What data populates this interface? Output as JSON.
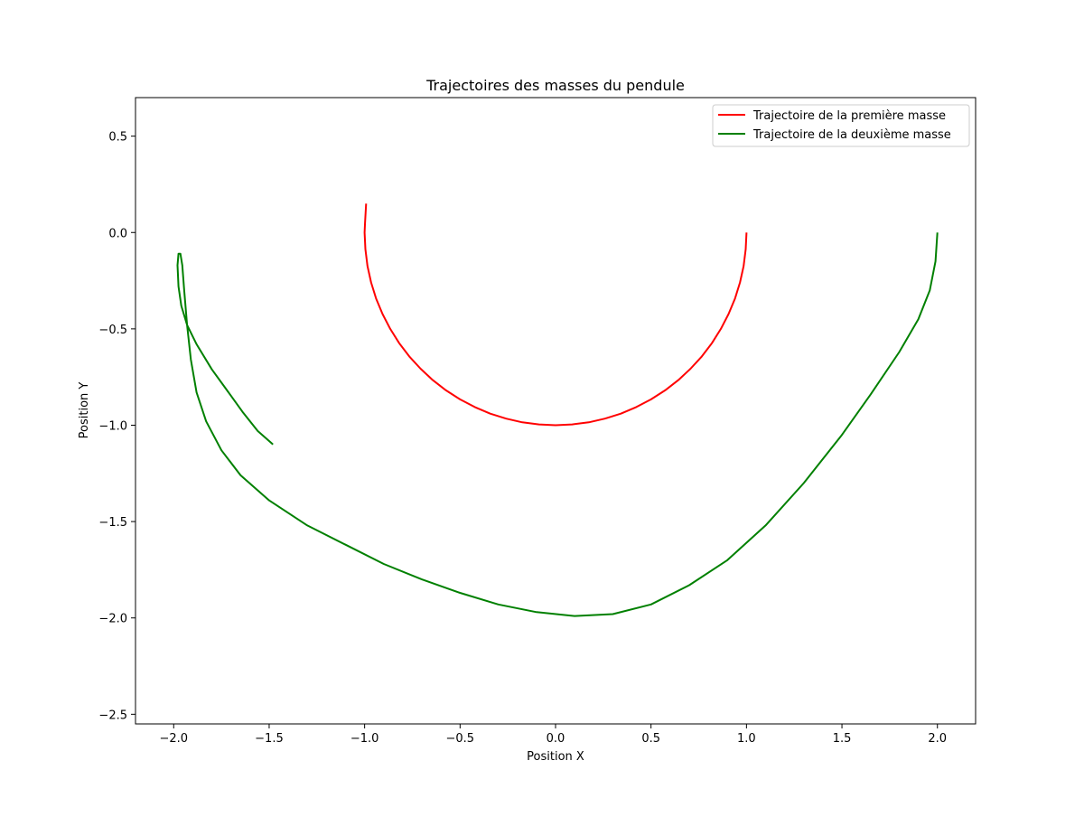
{
  "chart_data": {
    "type": "line",
    "title": "Trajectoires des masses du pendule",
    "xlabel": "Position X",
    "ylabel": "Position Y",
    "xlim": [
      -2.2,
      2.2
    ],
    "ylim": [
      -2.55,
      0.7
    ],
    "xticks": [
      {
        "value": -2.0,
        "label": "−2.0"
      },
      {
        "value": -1.5,
        "label": "−1.5"
      },
      {
        "value": -1.0,
        "label": "−1.0"
      },
      {
        "value": -0.5,
        "label": "−0.5"
      },
      {
        "value": 0.0,
        "label": "0.0"
      },
      {
        "value": 0.5,
        "label": "0.5"
      },
      {
        "value": 1.0,
        "label": "1.0"
      },
      {
        "value": 1.5,
        "label": "1.5"
      },
      {
        "value": 2.0,
        "label": "2.0"
      }
    ],
    "yticks": [
      {
        "value": 0.5,
        "label": "0.5"
      },
      {
        "value": 0.0,
        "label": "0.0"
      },
      {
        "value": -0.5,
        "label": "−0.5"
      },
      {
        "value": -1.0,
        "label": "−1.0"
      },
      {
        "value": -1.5,
        "label": "−1.5"
      },
      {
        "value": -2.0,
        "label": "−2.0"
      },
      {
        "value": -2.5,
        "label": "−2.5"
      }
    ],
    "grid": false,
    "legend_position": "top-right",
    "series": [
      {
        "name": "Trajectoire de la première masse",
        "color": "#ff0000",
        "x": [
          1.0,
          0.996,
          0.985,
          0.966,
          0.94,
          0.906,
          0.866,
          0.819,
          0.766,
          0.707,
          0.643,
          0.574,
          0.5,
          0.423,
          0.342,
          0.259,
          0.174,
          0.087,
          0.0,
          -0.087,
          -0.174,
          -0.259,
          -0.342,
          -0.423,
          -0.5,
          -0.574,
          -0.643,
          -0.707,
          -0.766,
          -0.819,
          -0.866,
          -0.906,
          -0.94,
          -0.966,
          -0.985,
          -0.996,
          -1.0,
          -0.998,
          -0.995,
          -0.992
        ],
        "y": [
          0.0,
          -0.087,
          -0.174,
          -0.259,
          -0.342,
          -0.423,
          -0.5,
          -0.574,
          -0.643,
          -0.707,
          -0.766,
          -0.819,
          -0.866,
          -0.906,
          -0.94,
          -0.966,
          -0.985,
          -0.996,
          -1.0,
          -0.996,
          -0.985,
          -0.966,
          -0.94,
          -0.906,
          -0.866,
          -0.819,
          -0.766,
          -0.707,
          -0.643,
          -0.574,
          -0.5,
          -0.423,
          -0.342,
          -0.259,
          -0.174,
          -0.087,
          0.0,
          0.05,
          0.1,
          0.15
        ]
      },
      {
        "name": "Trajectoire de la deuxième masse",
        "color": "#008000",
        "x": [
          2.0,
          1.99,
          1.96,
          1.9,
          1.8,
          1.65,
          1.5,
          1.3,
          1.1,
          0.9,
          0.7,
          0.5,
          0.3,
          0.1,
          -0.1,
          -0.3,
          -0.5,
          -0.7,
          -0.9,
          -1.1,
          -1.3,
          -1.5,
          -1.65,
          -1.75,
          -1.83,
          -1.88,
          -1.91,
          -1.93,
          -1.945,
          -1.955,
          -1.965,
          -1.975,
          -1.98,
          -1.975,
          -1.96,
          -1.93,
          -1.88,
          -1.8,
          -1.72,
          -1.64,
          -1.56,
          -1.48
        ],
        "y": [
          0.0,
          -0.15,
          -0.3,
          -0.45,
          -0.62,
          -0.84,
          -1.05,
          -1.3,
          -1.52,
          -1.7,
          -1.83,
          -1.93,
          -1.98,
          -1.99,
          -1.97,
          -1.93,
          -1.87,
          -1.8,
          -1.72,
          -1.62,
          -1.52,
          -1.39,
          -1.26,
          -1.13,
          -0.98,
          -0.83,
          -0.66,
          -0.48,
          -0.3,
          -0.17,
          -0.11,
          -0.11,
          -0.17,
          -0.28,
          -0.38,
          -0.48,
          -0.58,
          -0.71,
          -0.82,
          -0.93,
          -1.03,
          -1.1
        ]
      }
    ]
  }
}
